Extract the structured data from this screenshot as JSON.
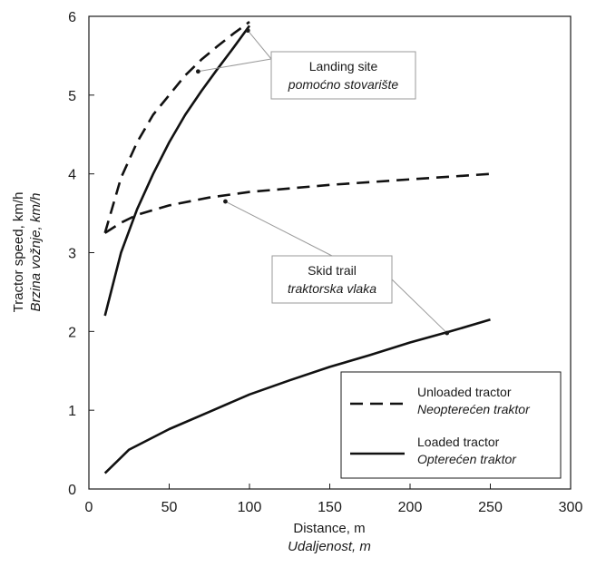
{
  "chart_data": {
    "type": "line",
    "title": "",
    "xlabel": "Distance, m",
    "xlabel_secondary": "Udaljenost, m",
    "ylabel": "Tractor speed, km/h",
    "ylabel_secondary": "Brzina vožnje, km/h",
    "xlim": [
      0,
      300
    ],
    "ylim": [
      0,
      6
    ],
    "xticks": [
      0,
      50,
      100,
      150,
      200,
      250,
      300
    ],
    "yticks": [
      0,
      1,
      2,
      3,
      4,
      5,
      6
    ],
    "grid": false,
    "legend_position": "bottom-right",
    "legend": [
      {
        "label": "Unloaded tractor",
        "label_secondary": "Neopterećen traktor",
        "style": "dashed"
      },
      {
        "label": "Loaded tractor",
        "label_secondary": "Opterećen traktor",
        "style": "solid"
      }
    ],
    "series": [
      {
        "name": "Unloaded tractor",
        "group": "Skid trail",
        "style": "dashed",
        "x": [
          10,
          20,
          30,
          50,
          75,
          100,
          150,
          200,
          250
        ],
        "y": [
          3.25,
          3.38,
          3.48,
          3.6,
          3.7,
          3.77,
          3.86,
          3.93,
          4.0
        ]
      },
      {
        "name": "Loaded tractor",
        "group": "Skid trail",
        "style": "solid",
        "x": [
          10,
          25,
          50,
          75,
          100,
          125,
          150,
          175,
          200,
          225,
          250
        ],
        "y": [
          0.2,
          0.5,
          0.76,
          0.98,
          1.2,
          1.38,
          1.55,
          1.7,
          1.86,
          2.0,
          2.15
        ]
      },
      {
        "name": "Unloaded tractor",
        "group": "Landing site",
        "style": "dashed",
        "x": [
          10,
          20,
          30,
          40,
          50,
          60,
          70,
          80,
          90,
          100
        ],
        "y": [
          3.25,
          3.95,
          4.4,
          4.75,
          5.0,
          5.25,
          5.45,
          5.62,
          5.78,
          5.93
        ]
      },
      {
        "name": "Loaded tractor",
        "group": "Landing site",
        "style": "solid",
        "x": [
          10,
          20,
          30,
          40,
          50,
          60,
          70,
          80,
          90,
          100
        ],
        "y": [
          2.2,
          3.0,
          3.55,
          4.0,
          4.4,
          4.75,
          5.05,
          5.33,
          5.6,
          5.88
        ]
      }
    ],
    "annotations": [
      {
        "id": "landing",
        "line1": "Landing site",
        "line2": "pomoćno stovarište",
        "points_to": [
          [
            99,
            5.82
          ],
          [
            68,
            5.3
          ]
        ]
      },
      {
        "id": "skid",
        "line1": "Skid trail",
        "line2": "traktorska vlaka",
        "points_to": [
          [
            85,
            3.65
          ],
          [
            223,
            1.98
          ]
        ]
      }
    ]
  }
}
